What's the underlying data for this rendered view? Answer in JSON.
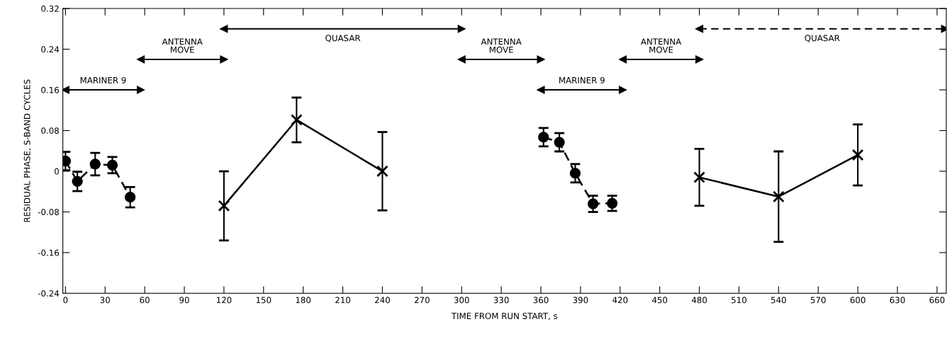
{
  "chart_data": {
    "type": "line",
    "xlabel": "TIME FROM RUN START, s",
    "ylabel": "RESIDUAL PHASE, S-BAND CYCLES",
    "series": [
      {
        "color": "#000000",
        "marker": "circle",
        "line_style": "dashed",
        "x": [
          0,
          9,
          22.5,
          35.5,
          49
        ],
        "values": [
          0.02,
          -0.02,
          0.014,
          0.012,
          -0.051
        ],
        "errors": [
          0.018,
          0.019,
          0.022,
          0.016,
          0.02
        ]
      },
      {
        "color": "#000000",
        "marker": "cross",
        "line_style": "solid",
        "x": [
          120,
          175,
          240
        ],
        "values": [
          -0.068,
          0.101,
          0.0
        ],
        "errors": [
          0.068,
          0.044,
          0.077
        ]
      },
      {
        "color": "#000000",
        "marker": "circle",
        "line_style": "dashed",
        "x": [
          362,
          374,
          386,
          399.5,
          414
        ],
        "values": [
          0.067,
          0.057,
          -0.004,
          -0.064,
          -0.063
        ],
        "errors": [
          0.018,
          0.018,
          0.018,
          0.016,
          0.015
        ]
      },
      {
        "color": "#000000",
        "marker": "cross",
        "line_style": "solid",
        "x": [
          480,
          540,
          600
        ],
        "values": [
          -0.012,
          -0.05,
          0.032
        ],
        "errors": [
          0.056,
          0.089,
          0.06
        ]
      },
      {
        "name": "MARINER 9",
        "color": "#000000",
        "marker": "triangle",
        "line_style": "solid",
        "x": [
          0,
          57
        ],
        "values": [
          0.16,
          0.16
        ]
      },
      {
        "name": "ANTENNA\nMOVE",
        "color": "#000000",
        "marker": "triangle",
        "line_style": "solid",
        "x": [
          57,
          120
        ],
        "values": [
          0.22,
          0.22
        ]
      },
      {
        "name": "QUASAR",
        "color": "#000000",
        "marker": "triangle",
        "line_style": "solid",
        "x": [
          120,
          300
        ],
        "values": [
          0.28,
          0.28
        ]
      },
      {
        "name": "ANTENNA\nMOVE",
        "color": "#000000",
        "marker": "triangle",
        "line_style": "solid",
        "x": [
          300,
          360
        ],
        "values": [
          0.22,
          0.22
        ]
      },
      {
        "name": "MARINER 9",
        "color": "#000000",
        "marker": "triangle",
        "line_style": "solid",
        "x": [
          360,
          422
        ],
        "values": [
          0.16,
          0.16
        ]
      },
      {
        "name": "ANTENNA\nMOVE",
        "color": "#000000",
        "marker": "triangle",
        "line_style": "solid",
        "x": [
          422,
          480
        ],
        "values": [
          0.22,
          0.22
        ]
      },
      {
        "name": "QUASAR",
        "color": "#000000",
        "marker": "triangle",
        "line_style": "dashed",
        "x": [
          480,
          666
        ],
        "values": [
          0.28,
          0.28
        ]
      }
    ],
    "xlim": [
      -2,
      667
    ],
    "ylim": [
      -0.24,
      0.32
    ],
    "xticks": [
      0,
      30,
      60,
      90,
      120,
      150,
      180,
      210,
      240,
      270,
      300,
      330,
      360,
      390,
      420,
      450,
      480,
      510,
      540,
      570,
      600,
      630,
      660
    ],
    "yticks": [
      -0.24,
      -0.16,
      -0.08,
      0,
      0.08,
      0.16,
      0.24,
      0.32
    ],
    "grid": false,
    "legend": false
  }
}
